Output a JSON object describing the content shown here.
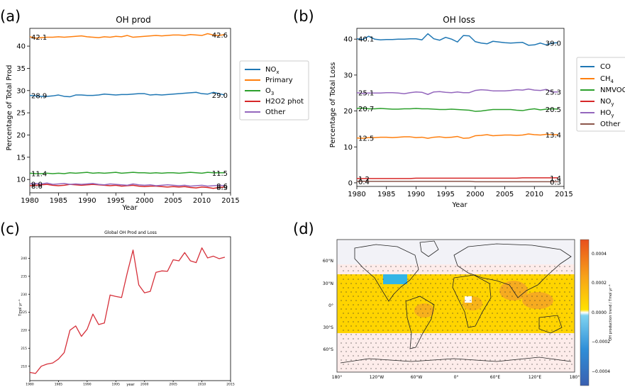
{
  "panel_labels": [
    "(a)",
    "(b)",
    "(c)",
    "(d)"
  ],
  "colors": {
    "blue": "#1f77b4",
    "orange": "#ff7f0e",
    "green": "#2ca02c",
    "red": "#d62728",
    "purple": "#9467bd",
    "brown": "#8c564b",
    "c_line": "#d6303a",
    "map_yellow": "#ffd400",
    "map_orange": "#f5a623",
    "map_pink": "#fdecea",
    "map_blue": "#33b5e5",
    "land_bg": "#f0f0f5"
  },
  "chart_data": [
    {
      "type": "line",
      "title": "OH prod",
      "xlabel": "Year",
      "ylabel": "Percentage of Total Prod",
      "xlim": [
        1980,
        2015
      ],
      "ylim": [
        7,
        44
      ],
      "xticks": [
        1980,
        1985,
        1990,
        1995,
        2000,
        2005,
        2010,
        2015
      ],
      "yticks": [
        10,
        15,
        20,
        25,
        30,
        35,
        40
      ],
      "legend_position": "outside-right",
      "grid": false,
      "x": [
        1980,
        1981,
        1982,
        1983,
        1984,
        1985,
        1986,
        1987,
        1988,
        1989,
        1990,
        1991,
        1992,
        1993,
        1994,
        1995,
        1996,
        1997,
        1998,
        1999,
        2000,
        2001,
        2002,
        2003,
        2004,
        2005,
        2006,
        2007,
        2008,
        2009,
        2010,
        2011,
        2012,
        2013,
        2014
      ],
      "series": [
        {
          "name": "NOx",
          "name_base": "NO",
          "name_sub": "x",
          "color": "#1f77b4",
          "start_label": "28.9",
          "end_label": "29.0",
          "values": [
            28.9,
            28.8,
            28.7,
            28.7,
            28.8,
            29.0,
            28.7,
            28.6,
            29.0,
            29.0,
            28.9,
            28.9,
            29.0,
            29.2,
            29.1,
            29.0,
            29.1,
            29.1,
            29.2,
            29.3,
            29.3,
            29.0,
            29.1,
            29.0,
            29.1,
            29.2,
            29.3,
            29.4,
            29.5,
            29.6,
            29.3,
            29.2,
            29.6,
            29.3,
            29.0
          ]
        },
        {
          "name": "Primary",
          "color": "#ff7f0e",
          "start_label": "42.1",
          "end_label": "42.6",
          "values": [
            42.1,
            41.8,
            41.9,
            42.0,
            42.0,
            42.1,
            42.0,
            42.1,
            42.2,
            42.3,
            42.1,
            42.0,
            41.9,
            42.1,
            42.0,
            42.2,
            42.1,
            42.4,
            42.0,
            42.1,
            42.2,
            42.3,
            42.4,
            42.3,
            42.4,
            42.5,
            42.5,
            42.4,
            42.6,
            42.5,
            42.4,
            42.8,
            42.5,
            42.4,
            42.6
          ]
        },
        {
          "name": "O3",
          "name_base": "O",
          "name_sub": "3",
          "color": "#2ca02c",
          "start_label": "11.4",
          "end_label": "11.5",
          "values": [
            11.4,
            11.3,
            11.3,
            11.4,
            11.3,
            11.4,
            11.3,
            11.5,
            11.4,
            11.5,
            11.6,
            11.4,
            11.5,
            11.4,
            11.5,
            11.6,
            11.4,
            11.5,
            11.6,
            11.5,
            11.5,
            11.4,
            11.5,
            11.4,
            11.5,
            11.5,
            11.4,
            11.5,
            11.6,
            11.5,
            11.4,
            11.6,
            11.5,
            11.5,
            11.5
          ]
        },
        {
          "name": "H2O2 phot",
          "color": "#d62728",
          "start_label": "8.6",
          "end_label": "8.3",
          "values": [
            8.6,
            8.7,
            8.8,
            8.9,
            8.7,
            8.6,
            8.7,
            8.9,
            8.8,
            8.7,
            8.8,
            8.9,
            8.8,
            8.7,
            8.6,
            8.7,
            8.5,
            8.6,
            8.7,
            8.5,
            8.4,
            8.5,
            8.5,
            8.4,
            8.3,
            8.4,
            8.3,
            8.4,
            8.2,
            8.1,
            8.3,
            8.2,
            8.0,
            8.2,
            8.3
          ]
        },
        {
          "name": "Other",
          "color": "#9467bd",
          "start_label": "9.0",
          "end_label": "8.6",
          "values": [
            9.0,
            9.1,
            9.0,
            9.2,
            8.9,
            9.0,
            9.1,
            8.9,
            9.0,
            8.9,
            9.0,
            9.1,
            8.9,
            8.8,
            9.0,
            8.9,
            8.8,
            8.7,
            9.0,
            8.8,
            8.7,
            8.8,
            8.6,
            8.7,
            8.8,
            8.7,
            8.6,
            8.7,
            8.5,
            8.6,
            8.7,
            8.5,
            8.6,
            8.7,
            8.6
          ]
        }
      ]
    },
    {
      "type": "line",
      "title": "OH loss",
      "xlabel": "Year",
      "ylabel": "Percentage of Total Loss",
      "xlim": [
        1980,
        2015
      ],
      "ylim": [
        -1,
        43
      ],
      "xticks": [
        1980,
        1985,
        1990,
        1995,
        2000,
        2005,
        2010,
        2015
      ],
      "yticks": [
        0,
        10,
        20,
        30,
        40
      ],
      "legend_position": "outside-right",
      "grid": false,
      "x": [
        1980,
        1981,
        1982,
        1983,
        1984,
        1985,
        1986,
        1987,
        1988,
        1989,
        1990,
        1991,
        1992,
        1993,
        1994,
        1995,
        1996,
        1997,
        1998,
        1999,
        2000,
        2001,
        2002,
        2003,
        2004,
        2005,
        2006,
        2007,
        2008,
        2009,
        2010,
        2011,
        2012,
        2013,
        2014
      ],
      "series": [
        {
          "name": "CO",
          "color": "#1f77b4",
          "start_label": "40.1",
          "end_label": "39.0",
          "values": [
            40.1,
            39.9,
            40.8,
            40.0,
            39.8,
            39.9,
            39.9,
            40.0,
            40.0,
            40.1,
            40.1,
            39.8,
            41.5,
            40.1,
            39.7,
            40.5,
            40.0,
            39.2,
            41.0,
            40.9,
            39.3,
            38.9,
            38.7,
            39.4,
            39.2,
            39.0,
            38.9,
            39.0,
            39.1,
            38.3,
            38.4,
            38.9,
            38.4,
            38.9,
            39.0
          ]
        },
        {
          "name": "CH4",
          "name_base": "CH",
          "name_sub": "4",
          "color": "#ff7f0e",
          "start_label": "12.5",
          "end_label": "13.4",
          "values": [
            12.5,
            12.4,
            12.6,
            12.6,
            12.7,
            12.7,
            12.6,
            12.7,
            12.8,
            12.8,
            12.6,
            12.7,
            12.4,
            12.7,
            12.8,
            12.6,
            12.7,
            12.9,
            12.4,
            12.5,
            13.1,
            13.2,
            13.4,
            13.1,
            13.2,
            13.3,
            13.3,
            13.2,
            13.3,
            13.6,
            13.4,
            13.3,
            13.5,
            13.4,
            13.4
          ]
        },
        {
          "name": "NMVOC",
          "color": "#2ca02c",
          "start_label": "20.7",
          "end_label": "20.5",
          "values": [
            20.7,
            20.8,
            20.6,
            20.6,
            20.7,
            20.6,
            20.5,
            20.5,
            20.6,
            20.6,
            20.7,
            20.6,
            20.6,
            20.5,
            20.4,
            20.4,
            20.5,
            20.4,
            20.3,
            20.2,
            19.9,
            20.0,
            20.2,
            20.4,
            20.4,
            20.4,
            20.4,
            20.2,
            20.1,
            20.4,
            20.6,
            20.3,
            20.5,
            20.6,
            20.5
          ]
        },
        {
          "name": "NOy",
          "name_base": "NO",
          "name_sub": "y",
          "color": "#d62728",
          "start_label": "1.2",
          "end_label": "1.4",
          "values": [
            1.2,
            1.2,
            1.2,
            1.2,
            1.2,
            1.2,
            1.2,
            1.2,
            1.2,
            1.2,
            1.3,
            1.3,
            1.3,
            1.3,
            1.3,
            1.3,
            1.3,
            1.3,
            1.3,
            1.3,
            1.3,
            1.3,
            1.3,
            1.3,
            1.3,
            1.3,
            1.3,
            1.3,
            1.4,
            1.4,
            1.4,
            1.4,
            1.4,
            1.4,
            1.4
          ]
        },
        {
          "name": "HOy",
          "name_base": "HO",
          "name_sub": "y",
          "color": "#9467bd",
          "start_label": "25.1",
          "end_label": "25.3",
          "values": [
            25.1,
            24.9,
            25.0,
            25.0,
            25.0,
            25.1,
            25.1,
            25.0,
            24.8,
            25.1,
            25.3,
            25.2,
            24.6,
            25.3,
            25.4,
            25.2,
            25.1,
            25.3,
            25.1,
            25.1,
            25.7,
            25.9,
            25.8,
            25.6,
            25.6,
            25.6,
            25.7,
            25.9,
            25.8,
            26.1,
            25.8,
            25.7,
            26.0,
            25.3,
            25.3
          ]
        },
        {
          "name": "Other",
          "color": "#8c564b",
          "start_label": "0.4",
          "end_label": "0.3",
          "values": [
            0.4,
            0.4,
            0.4,
            0.4,
            0.4,
            0.4,
            0.4,
            0.4,
            0.4,
            0.4,
            0.4,
            0.4,
            0.4,
            0.4,
            0.4,
            0.4,
            0.4,
            0.4,
            0.4,
            0.4,
            0.3,
            0.3,
            0.3,
            0.3,
            0.3,
            0.3,
            0.3,
            0.3,
            0.3,
            0.3,
            0.3,
            0.3,
            0.3,
            0.3,
            0.3
          ]
        }
      ]
    },
    {
      "type": "line",
      "title": "Global OH Prod and Loss",
      "xlabel": "year",
      "ylabel": "Tmol yr⁻¹",
      "xlim": [
        1980,
        2015
      ],
      "ylim": [
        206,
        246
      ],
      "xticks": [
        1980,
        1985,
        1990,
        1995,
        2000,
        2005,
        2010,
        2015
      ],
      "yticks": [
        210,
        215,
        220,
        225,
        230,
        235,
        240
      ],
      "grid": false,
      "x": [
        1980,
        1981,
        1982,
        1983,
        1984,
        1985,
        1986,
        1987,
        1988,
        1989,
        1990,
        1991,
        1992,
        1993,
        1994,
        1995,
        1996,
        1997,
        1998,
        1999,
        2000,
        2001,
        2002,
        2003,
        2004,
        2005,
        2006,
        2007,
        2008,
        2009,
        2010,
        2011,
        2012,
        2013,
        2014
      ],
      "series": [
        {
          "color": "#d6303a",
          "values": [
            208.3,
            208.0,
            210.0,
            210.6,
            210.9,
            212.0,
            213.8,
            220.0,
            221.2,
            218.3,
            220.3,
            224.5,
            221.6,
            222.0,
            229.8,
            229.4,
            229.1,
            236.0,
            242.3,
            232.6,
            230.4,
            230.8,
            236.1,
            236.5,
            236.4,
            239.6,
            239.3,
            241.6,
            239.3,
            238.8,
            242.9,
            240.1,
            240.6,
            239.9,
            240.3
          ]
        }
      ]
    },
    {
      "type": "heatmap",
      "projection": "equirectangular world map",
      "colorbar_label": "OH production trend / Tmol yr⁻¹",
      "colorbar_ticks": [
        "0.0004",
        "0.0002",
        "0.0000",
        "−0.0002",
        "−0.0004"
      ],
      "lon_ticks": [
        "180°",
        "120°W",
        "60°W",
        "0°",
        "60°E",
        "120°E",
        "180°"
      ],
      "lat_ticks": [
        "60°N",
        "30°N",
        "0°",
        "30°S",
        "60°S"
      ]
    }
  ]
}
